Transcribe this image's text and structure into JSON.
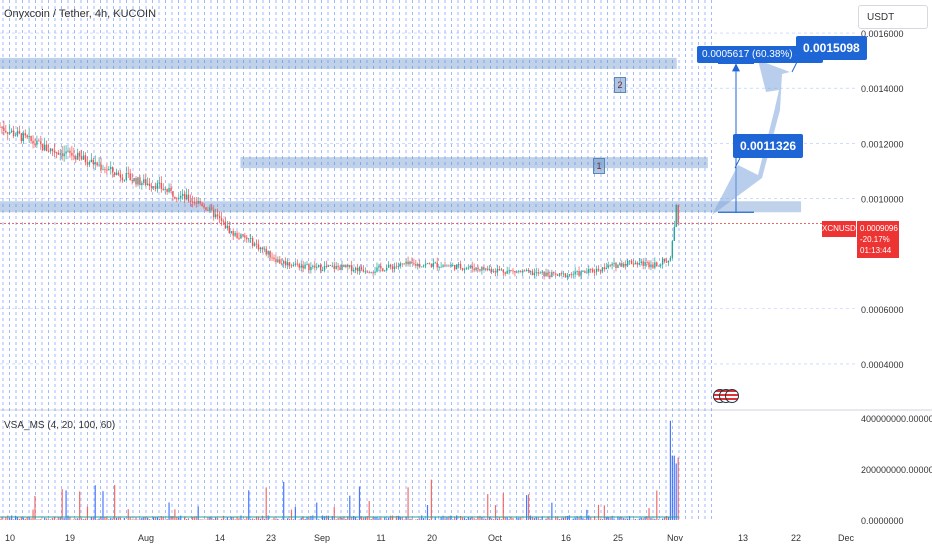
{
  "header": {
    "symbol_title": "Onyxcoin / Tether, 4h, KUCOIN",
    "currency_button": "USDT"
  },
  "indicator": {
    "label": "VSA_MS (4, 20, 100, 60)"
  },
  "annotations": {
    "range_measure": "0.0005617 (60.38%) 5617",
    "target_high": "0.0015098",
    "target_mid": "0.0011326",
    "zone_1": "1",
    "zone_2": "2"
  },
  "last_price": {
    "ticker": "XCNUSDT",
    "price": "0.0009096",
    "change": "-20.17%",
    "countdown": "01:13:44"
  },
  "colors": {
    "up": "#26a69a",
    "down": "#ef5350",
    "grid": "#2962ff",
    "zone": "#4a7fc1",
    "callout": "#1e66d6",
    "last_price": "#e53935"
  },
  "chart_data": {
    "type": "candlestick",
    "title": "Onyxcoin / Tether, 4h, KUCOIN",
    "timeframe": "4h",
    "x_ticks": [
      "10",
      "19",
      "Aug",
      "14",
      "23",
      "Sep",
      "11",
      "20",
      "Oct",
      "16",
      "25",
      "Nov",
      "13",
      "22",
      "Dec"
    ],
    "price_ticks": [
      "0.0016000",
      "0.0014000",
      "0.0012000",
      "0.0010000",
      "0.0006000",
      "0.0004000"
    ],
    "price_ylim": [
      0.00024,
      0.00172
    ],
    "volume_ticks": [
      "400000000.0000000",
      "200000000.0000000",
      "0.0000000"
    ],
    "volume_ylim": [
      0,
      420000000
    ],
    "close_path": [
      [
        0,
        0.00126
      ],
      [
        3,
        0.00122
      ],
      [
        6,
        0.00118
      ],
      [
        9,
        0.00116
      ],
      [
        12,
        0.00113
      ],
      [
        15,
        0.00109
      ],
      [
        18,
        0.00106
      ],
      [
        20,
        0.00105
      ],
      [
        22,
        0.00102
      ],
      [
        24,
        0.001
      ],
      [
        26,
        0.00098
      ],
      [
        28,
        0.00093
      ],
      [
        30,
        0.00087
      ],
      [
        32,
        0.00085
      ],
      [
        34,
        0.00081
      ],
      [
        36,
        0.00077
      ],
      [
        40,
        0.00075
      ],
      [
        44,
        0.00075
      ],
      [
        48,
        0.00074
      ],
      [
        52,
        0.00076
      ],
      [
        56,
        0.00076
      ],
      [
        60,
        0.00075
      ],
      [
        64,
        0.00074
      ],
      [
        68,
        0.00073
      ],
      [
        72,
        0.00072
      ],
      [
        75,
        0.00073
      ],
      [
        78,
        0.00075
      ],
      [
        81,
        0.00077
      ],
      [
        84,
        0.00076
      ],
      [
        86.3,
        0.00078
      ],
      [
        87.0,
        0.00098
      ],
      [
        87.3,
        0.00091
      ]
    ],
    "grid": true,
    "horizontal_zones": [
      {
        "label": "1",
        "price": 0.00113,
        "x_range": [
          31,
          91
        ]
      },
      {
        "label": "2",
        "price": 0.00149,
        "x_range": [
          0,
          87
        ]
      },
      {
        "label": "",
        "price": 0.00097,
        "x_range": [
          0,
          103
        ]
      }
    ],
    "measure": {
      "from": 0.00095,
      "to": 0.00149,
      "text": "0.0005617 (60.38%) 5617"
    },
    "targets": [
      0.0011326,
      0.0015098
    ],
    "last_price": 0.0009096
  }
}
